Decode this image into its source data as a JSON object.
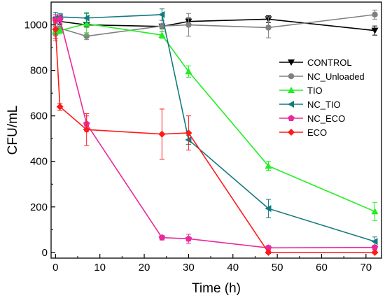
{
  "chart_data": {
    "type": "line",
    "title": "",
    "xlabel": "Time (h)",
    "ylabel": "CFU/mL",
    "xlim": [
      -1,
      73.5
    ],
    "ylim": [
      -25,
      1100
    ],
    "xticks": [
      0,
      10,
      20,
      30,
      40,
      50,
      60,
      70
    ],
    "yticks": [
      0,
      200,
      400,
      600,
      800,
      1000
    ],
    "grid": false,
    "legend_position": "right",
    "series": [
      {
        "name": "CONTROL",
        "color": "#000000",
        "marker": "triangle-down",
        "x": [
          0,
          1,
          7,
          24,
          30,
          48,
          72
        ],
        "y": [
          1020,
          1015,
          1000,
          993,
          1015,
          1025,
          975
        ],
        "err": [
          15,
          15,
          10,
          10,
          15,
          15,
          20
        ]
      },
      {
        "name": "NC_Unloaded",
        "color": "#808080",
        "marker": "circle",
        "x": [
          0,
          1,
          7,
          24,
          30,
          48,
          72
        ],
        "y": [
          960,
          985,
          950,
          995,
          1000,
          988,
          1045
        ],
        "err": [
          30,
          20,
          15,
          25,
          50,
          45,
          20
        ]
      },
      {
        "name": "TIO",
        "color": "#22ee22",
        "marker": "triangle-up",
        "x": [
          0,
          1,
          7,
          24,
          30,
          48,
          72
        ],
        "y": [
          975,
          975,
          1005,
          955,
          795,
          380,
          180
        ],
        "err": [
          20,
          15,
          50,
          15,
          25,
          20,
          40
        ]
      },
      {
        "name": "NC_TIO",
        "color": "#137a7f",
        "marker": "triangle-left",
        "x": [
          0,
          1,
          7,
          24,
          30,
          48,
          72
        ],
        "y": [
          1030,
          1035,
          1030,
          1045,
          495,
          193,
          48
        ],
        "err": [
          25,
          15,
          20,
          25,
          20,
          40,
          20
        ]
      },
      {
        "name": "NC_ECO",
        "color": "#e82a9c",
        "marker": "pentagon",
        "x": [
          0,
          1,
          7,
          24,
          30,
          48,
          72
        ],
        "y": [
          1020,
          1025,
          565,
          65,
          60,
          20,
          22
        ],
        "err": [
          25,
          20,
          35,
          10,
          20,
          10,
          10
        ]
      },
      {
        "name": "ECO",
        "color": "#ff1a1a",
        "marker": "diamond",
        "x": [
          0,
          1,
          7,
          24,
          30,
          48,
          72
        ],
        "y": [
          980,
          640,
          540,
          520,
          525,
          0,
          0
        ],
        "err": [
          40,
          15,
          70,
          110,
          75,
          5,
          5
        ]
      }
    ]
  }
}
